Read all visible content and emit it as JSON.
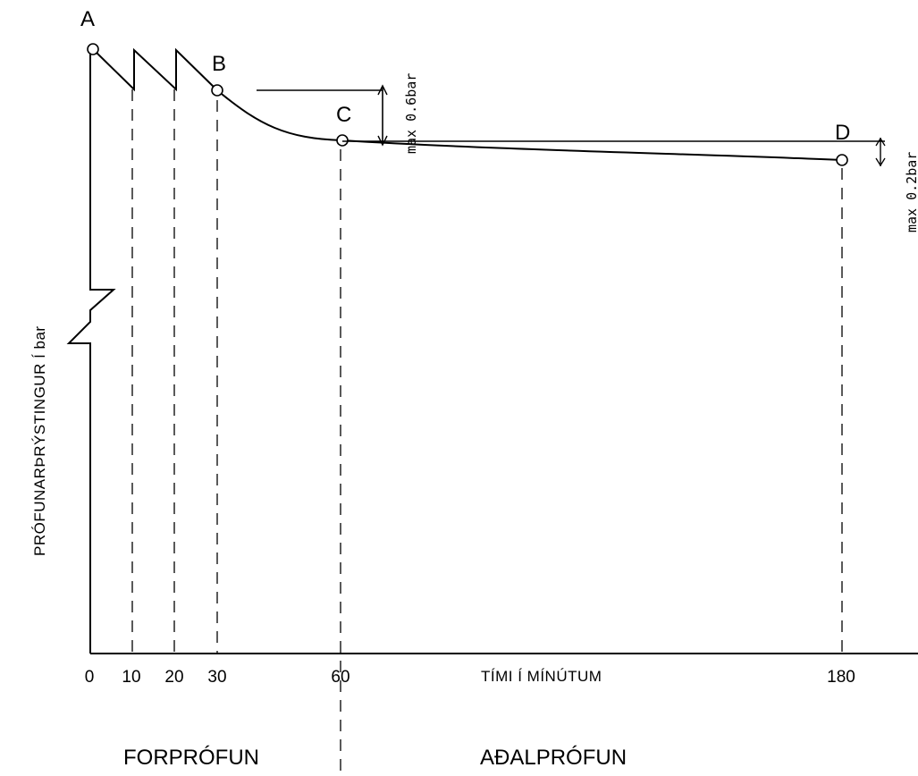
{
  "points": {
    "a": "A",
    "b": "B",
    "c": "C",
    "d": "D"
  },
  "x_ticks": [
    "0",
    "10",
    "20",
    "30",
    "60",
    "180"
  ],
  "x_axis_title": "TÍMI Í MÍNÚTUM",
  "y_axis_title": "PRÓFUNARÞRÝSTINGUR Í bar",
  "limits": {
    "pre_test": "max 0.6bar",
    "main_test": "max 0.2bar"
  },
  "phases": {
    "pre_test": "FORPRÓFUN",
    "main_test": "AÐALPRÓFUN"
  }
}
